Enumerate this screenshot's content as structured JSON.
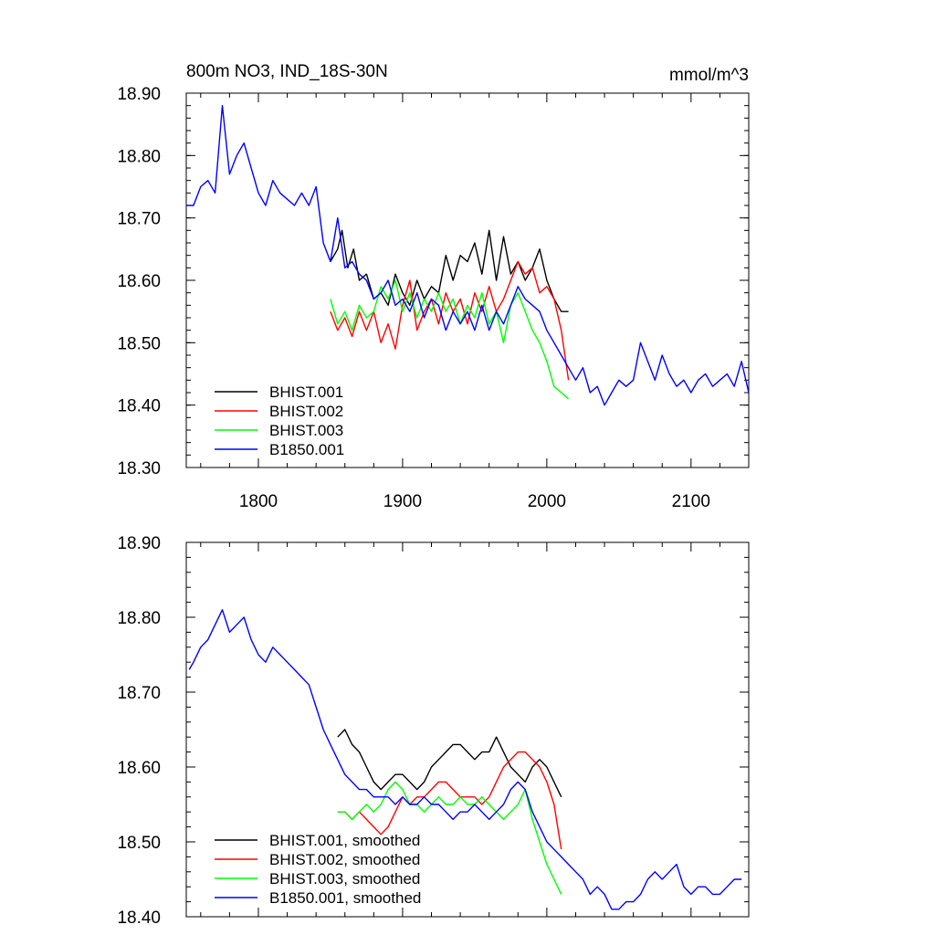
{
  "chart_data": [
    {
      "type": "line",
      "title_left": "800m NO3, IND_18S-30N",
      "title_right": "mmol/m^3",
      "xlabel": "",
      "ylabel": "",
      "xlim": [
        1750,
        2140
      ],
      "ylim": [
        18.3,
        18.9
      ],
      "x_ticks": [
        1800,
        1900,
        2000,
        2100
      ],
      "x_tick_labels": [
        "1800",
        "1900",
        "2000",
        "2100"
      ],
      "y_ticks": [
        18.3,
        18.4,
        18.5,
        18.6,
        18.7,
        18.8,
        18.9
      ],
      "y_tick_labels": [
        "18.30",
        "18.40",
        "18.50",
        "18.60",
        "18.70",
        "18.80",
        "18.90"
      ],
      "legend_position": "bottom-left",
      "series": [
        {
          "name": "BHIST.001",
          "color": "#000000",
          "x": [
            1850,
            1855,
            1858,
            1862,
            1866,
            1870,
            1875,
            1880,
            1885,
            1890,
            1895,
            1900,
            1905,
            1910,
            1915,
            1920,
            1925,
            1930,
            1935,
            1940,
            1945,
            1950,
            1955,
            1960,
            1965,
            1970,
            1975,
            1980,
            1985,
            1990,
            1995,
            2000,
            2005,
            2010,
            2015
          ],
          "y": [
            18.63,
            18.65,
            18.68,
            18.62,
            18.65,
            18.6,
            18.61,
            18.57,
            18.58,
            18.56,
            18.61,
            18.58,
            18.56,
            18.6,
            18.57,
            18.59,
            18.58,
            18.64,
            18.6,
            18.64,
            18.63,
            18.66,
            18.61,
            18.68,
            18.6,
            18.67,
            18.61,
            18.63,
            18.6,
            18.62,
            18.65,
            18.6,
            18.57,
            18.55,
            18.55
          ]
        },
        {
          "name": "BHIST.002",
          "color": "#ff0000",
          "x": [
            1850,
            1855,
            1860,
            1865,
            1870,
            1875,
            1880,
            1885,
            1890,
            1895,
            1900,
            1905,
            1910,
            1915,
            1920,
            1925,
            1930,
            1935,
            1940,
            1945,
            1950,
            1955,
            1960,
            1965,
            1970,
            1975,
            1980,
            1985,
            1990,
            1995,
            2000,
            2005,
            2010,
            2015
          ],
          "y": [
            18.55,
            18.52,
            18.54,
            18.51,
            18.55,
            18.52,
            18.55,
            18.5,
            18.53,
            18.49,
            18.56,
            18.6,
            18.52,
            18.55,
            18.57,
            18.53,
            18.58,
            18.55,
            18.57,
            18.53,
            18.58,
            18.55,
            18.59,
            18.55,
            18.57,
            18.6,
            18.63,
            18.61,
            18.62,
            18.58,
            18.59,
            18.57,
            18.52,
            18.44
          ]
        },
        {
          "name": "BHIST.003",
          "color": "#00ff00",
          "x": [
            1850,
            1855,
            1860,
            1865,
            1870,
            1875,
            1880,
            1885,
            1890,
            1895,
            1900,
            1905,
            1910,
            1915,
            1920,
            1925,
            1930,
            1935,
            1940,
            1945,
            1950,
            1955,
            1960,
            1965,
            1970,
            1975,
            1980,
            1985,
            1990,
            1995,
            2000,
            2005,
            2010,
            2015
          ],
          "y": [
            18.57,
            18.53,
            18.55,
            18.52,
            18.56,
            18.54,
            18.55,
            18.59,
            18.57,
            18.6,
            18.55,
            18.58,
            18.54,
            18.57,
            18.55,
            18.58,
            18.55,
            18.57,
            18.53,
            18.56,
            18.54,
            18.58,
            18.53,
            18.55,
            18.5,
            18.56,
            18.58,
            18.55,
            18.52,
            18.5,
            18.47,
            18.43,
            18.42,
            18.41
          ]
        },
        {
          "name": "B1850.001",
          "color": "#0000ff",
          "x": [
            1750,
            1755,
            1760,
            1765,
            1770,
            1775,
            1780,
            1785,
            1790,
            1795,
            1800,
            1805,
            1810,
            1815,
            1820,
            1825,
            1830,
            1835,
            1840,
            1845,
            1850,
            1855,
            1860,
            1865,
            1870,
            1875,
            1880,
            1885,
            1890,
            1895,
            1900,
            1905,
            1910,
            1915,
            1920,
            1925,
            1930,
            1935,
            1940,
            1945,
            1950,
            1955,
            1960,
            1965,
            1970,
            1975,
            1980,
            1985,
            1990,
            1995,
            2000,
            2005,
            2010,
            2015,
            2020,
            2025,
            2030,
            2035,
            2040,
            2045,
            2050,
            2055,
            2060,
            2065,
            2070,
            2075,
            2080,
            2085,
            2090,
            2095,
            2100,
            2105,
            2110,
            2115,
            2120,
            2125,
            2130,
            2135,
            2140
          ],
          "y": [
            18.72,
            18.72,
            18.75,
            18.76,
            18.74,
            18.88,
            18.77,
            18.8,
            18.82,
            18.78,
            18.74,
            18.72,
            18.76,
            18.74,
            18.73,
            18.72,
            18.74,
            18.72,
            18.75,
            18.66,
            18.63,
            18.7,
            18.62,
            18.63,
            18.61,
            18.6,
            18.57,
            18.58,
            18.6,
            18.56,
            18.57,
            18.55,
            18.58,
            18.54,
            18.57,
            18.56,
            18.52,
            18.55,
            18.53,
            18.55,
            18.52,
            18.56,
            18.52,
            18.55,
            18.53,
            18.56,
            18.59,
            18.57,
            18.56,
            18.55,
            18.52,
            18.5,
            18.48,
            18.46,
            18.44,
            18.46,
            18.42,
            18.43,
            18.4,
            18.42,
            18.44,
            18.43,
            18.44,
            18.5,
            18.47,
            18.44,
            18.48,
            18.45,
            18.43,
            18.44,
            18.42,
            18.44,
            18.45,
            18.43,
            18.44,
            18.45,
            18.43,
            18.47,
            18.42
          ]
        }
      ]
    },
    {
      "type": "line",
      "xlim": [
        1750,
        2140
      ],
      "ylim": [
        18.4,
        18.9
      ],
      "x_ticks": [
        1800,
        1900,
        2000,
        2100
      ],
      "y_ticks": [
        18.4,
        18.5,
        18.6,
        18.7,
        18.8,
        18.9
      ],
      "y_tick_labels": [
        "18.40",
        "18.50",
        "18.60",
        "18.70",
        "18.80",
        "18.90"
      ],
      "legend_position": "bottom-left",
      "series": [
        {
          "name": "BHIST.001, smoothed",
          "color": "#000000",
          "x": [
            1855,
            1860,
            1865,
            1870,
            1875,
            1880,
            1885,
            1890,
            1895,
            1900,
            1905,
            1910,
            1915,
            1920,
            1925,
            1930,
            1935,
            1940,
            1945,
            1950,
            1955,
            1960,
            1965,
            1970,
            1975,
            1980,
            1985,
            1990,
            1995,
            2000,
            2005,
            2010
          ],
          "y": [
            18.64,
            18.65,
            18.63,
            18.62,
            18.6,
            18.58,
            18.57,
            18.58,
            18.59,
            18.59,
            18.58,
            18.57,
            18.58,
            18.6,
            18.61,
            18.62,
            18.63,
            18.63,
            18.62,
            18.61,
            18.62,
            18.62,
            18.64,
            18.62,
            18.6,
            18.59,
            18.58,
            18.6,
            18.61,
            18.6,
            18.58,
            18.56
          ]
        },
        {
          "name": "BHIST.002, smoothed",
          "color": "#ff0000",
          "x": [
            1855,
            1860,
            1865,
            1870,
            1875,
            1880,
            1885,
            1890,
            1895,
            1900,
            1905,
            1910,
            1915,
            1920,
            1925,
            1930,
            1935,
            1940,
            1945,
            1950,
            1955,
            1960,
            1965,
            1970,
            1975,
            1980,
            1985,
            1990,
            1995,
            2000,
            2005,
            2010
          ],
          "y": [
            18.54,
            18.54,
            18.53,
            18.54,
            18.53,
            18.52,
            18.51,
            18.52,
            18.54,
            18.56,
            18.55,
            18.56,
            18.56,
            18.57,
            18.58,
            18.58,
            18.57,
            18.56,
            18.56,
            18.56,
            18.55,
            18.56,
            18.58,
            18.6,
            18.61,
            18.62,
            18.62,
            18.61,
            18.6,
            18.58,
            18.55,
            18.49
          ]
        },
        {
          "name": "BHIST.003, smoothed",
          "color": "#00ff00",
          "x": [
            1855,
            1860,
            1865,
            1870,
            1875,
            1880,
            1885,
            1890,
            1895,
            1900,
            1905,
            1910,
            1915,
            1920,
            1925,
            1930,
            1935,
            1940,
            1945,
            1950,
            1955,
            1960,
            1965,
            1970,
            1975,
            1980,
            1985,
            1990,
            1995,
            2000,
            2005,
            2010
          ],
          "y": [
            18.54,
            18.54,
            18.53,
            18.54,
            18.55,
            18.54,
            18.55,
            18.57,
            18.58,
            18.57,
            18.55,
            18.55,
            18.54,
            18.55,
            18.56,
            18.55,
            18.55,
            18.56,
            18.55,
            18.55,
            18.56,
            18.55,
            18.54,
            18.53,
            18.54,
            18.55,
            18.57,
            18.53,
            18.5,
            18.47,
            18.45,
            18.43
          ]
        },
        {
          "name": "B1850.001, smoothed",
          "color": "#0000ff",
          "x": [
            1752,
            1755,
            1760,
            1765,
            1770,
            1775,
            1780,
            1785,
            1790,
            1795,
            1800,
            1805,
            1810,
            1815,
            1820,
            1825,
            1830,
            1835,
            1840,
            1845,
            1850,
            1855,
            1860,
            1865,
            1870,
            1875,
            1880,
            1885,
            1890,
            1895,
            1900,
            1905,
            1910,
            1915,
            1920,
            1925,
            1930,
            1935,
            1940,
            1945,
            1950,
            1955,
            1960,
            1965,
            1970,
            1975,
            1980,
            1985,
            1990,
            1995,
            2000,
            2005,
            2010,
            2015,
            2020,
            2025,
            2030,
            2035,
            2040,
            2045,
            2050,
            2055,
            2060,
            2065,
            2070,
            2075,
            2080,
            2085,
            2090,
            2095,
            2100,
            2105,
            2110,
            2115,
            2120,
            2125,
            2130,
            2135
          ],
          "y": [
            18.73,
            18.74,
            18.76,
            18.77,
            18.79,
            18.81,
            18.78,
            18.79,
            18.8,
            18.77,
            18.75,
            18.74,
            18.76,
            18.75,
            18.74,
            18.73,
            18.72,
            18.71,
            18.68,
            18.65,
            18.63,
            18.61,
            18.59,
            18.58,
            18.57,
            18.57,
            18.56,
            18.56,
            18.56,
            18.55,
            18.56,
            18.55,
            18.55,
            18.56,
            18.55,
            18.55,
            18.54,
            18.53,
            18.54,
            18.54,
            18.55,
            18.54,
            18.53,
            18.54,
            18.55,
            18.57,
            18.58,
            18.57,
            18.54,
            18.52,
            18.5,
            18.49,
            18.48,
            18.47,
            18.46,
            18.45,
            18.43,
            18.44,
            18.43,
            18.41,
            18.41,
            18.42,
            18.42,
            18.43,
            18.45,
            18.46,
            18.45,
            18.46,
            18.47,
            18.44,
            18.43,
            18.44,
            18.44,
            18.43,
            18.43,
            18.44,
            18.45,
            18.45
          ]
        }
      ]
    }
  ]
}
